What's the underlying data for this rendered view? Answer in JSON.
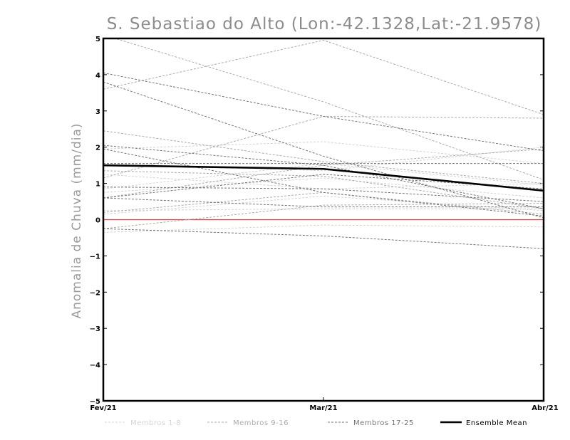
{
  "chart_data": {
    "type": "line",
    "title": "S. Sebastiao do Alto (Lon:-42.1328,Lat:-21.9578)",
    "ylabel": "Anomalia de Chuva (mm/dia)",
    "xlabel": "",
    "categories": [
      "Fev/21",
      "Mar/21",
      "Abr/21"
    ],
    "ylim": [
      -5,
      5
    ],
    "yticks": [
      -5,
      -4,
      -3,
      -2,
      -1,
      0,
      1,
      2,
      3,
      4,
      5
    ],
    "ytick_labels": [
      "−5",
      "−4",
      "−3",
      "−2",
      "−1",
      "0",
      "1",
      "2",
      "3",
      "4",
      "5"
    ],
    "zero_line_color": "#e84040",
    "groups": [
      {
        "name": "Membros 1-8",
        "color": "#d4d4d4",
        "series": [
          [
            1.95,
            2.15,
            1.55
          ],
          [
            1.25,
            0.85,
            1.0
          ],
          [
            0.85,
            1.55,
            0.95
          ],
          [
            0.25,
            0.3,
            0.3
          ],
          [
            -0.35,
            -0.15,
            -0.2
          ],
          [
            1.55,
            1.35,
            2.0
          ],
          [
            0.75,
            1.15,
            0.6
          ],
          [
            0.15,
            0.65,
            0.25
          ]
        ]
      },
      {
        "name": "Membros 9-16",
        "color": "#ababab",
        "series": [
          [
            5.1,
            3.25,
            1.1
          ],
          [
            3.6,
            4.95,
            2.9
          ],
          [
            2.45,
            1.6,
            1.0
          ],
          [
            1.15,
            2.85,
            2.8
          ],
          [
            1.35,
            1.2,
            0.3
          ],
          [
            0.6,
            1.5,
            1.95
          ],
          [
            0.2,
            0.75,
            0.15
          ],
          [
            -0.25,
            0.4,
            0.45
          ]
        ]
      },
      {
        "name": "Membros 17-25",
        "color": "#747474",
        "series": [
          [
            4.05,
            2.85,
            1.9
          ],
          [
            3.8,
            1.75,
            0.05
          ],
          [
            2.05,
            1.5,
            0.3
          ],
          [
            1.95,
            0.75,
            0.1
          ],
          [
            1.55,
            1.55,
            1.55
          ],
          [
            0.9,
            0.85,
            0.5
          ],
          [
            0.6,
            1.25,
            0.85
          ],
          [
            0.6,
            0.35,
            0.35
          ],
          [
            -0.25,
            -0.45,
            -0.8
          ]
        ]
      }
    ],
    "ensemble_mean": {
      "name": "Ensemble Mean",
      "color": "#000000",
      "values": [
        1.5,
        1.4,
        0.8
      ]
    },
    "legend_position": "bottom"
  }
}
